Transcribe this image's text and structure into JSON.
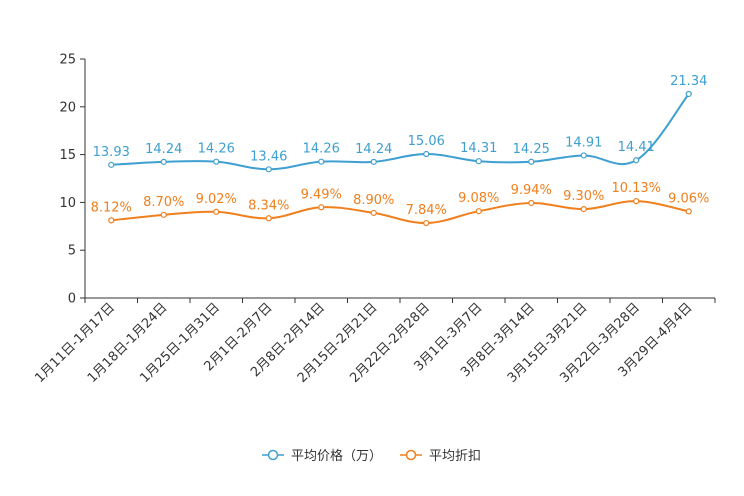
{
  "chart_data": {
    "type": "line",
    "title": "",
    "xlabel": "",
    "ylabel": "",
    "ylim": [
      0,
      25
    ],
    "yticks": [
      0,
      5,
      10,
      15,
      20,
      25
    ],
    "grid": false,
    "legend_position": "bottom-center",
    "categories": [
      "1月11日-1月17日",
      "1月18日-1月24日",
      "1月25日-1月31日",
      "2月1日-2月7日",
      "2月8日-2月14日",
      "2月15日-2月21日",
      "2月22日-2月28日",
      "3月1日-3月7日",
      "3月8日-3月14日",
      "3月15日-3月21日",
      "3月22日-3月28日",
      "3月29日-4月4日"
    ],
    "series": [
      {
        "name": "平均价格（万）",
        "color": "#3e9fd0",
        "values": [
          13.93,
          14.24,
          14.26,
          13.46,
          14.26,
          14.24,
          15.06,
          14.31,
          14.25,
          14.91,
          14.41,
          21.34
        ],
        "labels": [
          "13.93",
          "14.24",
          "14.26",
          "13.46",
          "14.26",
          "14.24",
          "15.06",
          "14.31",
          "14.25",
          "14.91",
          "14.41",
          "21.34"
        ]
      },
      {
        "name": "平均折扣",
        "color": "#f07f1e",
        "values": [
          8.12,
          8.7,
          9.02,
          8.34,
          9.49,
          8.9,
          7.84,
          9.08,
          9.94,
          9.3,
          10.13,
          9.06
        ],
        "labels": [
          "8.12%",
          "8.70%",
          "9.02%",
          "8.34%",
          "9.49%",
          "8.90%",
          "7.84%",
          "9.08%",
          "9.94%",
          "9.30%",
          "10.13%",
          "9.06%"
        ]
      }
    ]
  }
}
